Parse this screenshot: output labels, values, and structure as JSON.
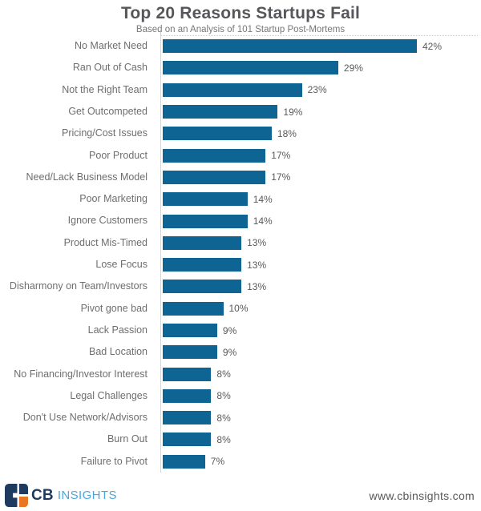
{
  "chart_data": {
    "type": "bar",
    "orientation": "horizontal",
    "title": "Top 20 Reasons Startups Fail",
    "subtitle": "Based on an Analysis of 101 Startup Post-Mortems",
    "categories": [
      "No Market Need",
      "Ran Out of Cash",
      "Not the Right Team",
      "Get Outcompeted",
      "Pricing/Cost Issues",
      "Poor Product",
      "Need/Lack Business Model",
      "Poor Marketing",
      "Ignore Customers",
      "Product Mis-Timed",
      "Lose Focus",
      "Disharmony on Team/Investors",
      "Pivot gone bad",
      "Lack Passion",
      "Bad Location",
      "No Financing/Investor Interest",
      "Legal Challenges",
      "Don't Use Network/Advisors",
      "Burn Out",
      "Failure to Pivot"
    ],
    "values": [
      42,
      29,
      23,
      19,
      18,
      17,
      17,
      14,
      14,
      13,
      13,
      13,
      10,
      9,
      9,
      8,
      8,
      8,
      8,
      7
    ],
    "value_suffix": "%",
    "xlabel": "",
    "ylabel": "",
    "xlim": [
      0,
      45
    ],
    "grid": false,
    "legend": "none",
    "data_labels": "outside-end"
  },
  "footer": {
    "logo_cb": "CB",
    "logo_insights": "INSIGHTS",
    "url": "www.cbinsights.com"
  },
  "icons": {
    "logo_mark": "cbinsights-logo-mark"
  },
  "colors": {
    "bar": "#0e6493",
    "title_text": "#56575a",
    "subtitle_text": "#76777a",
    "label_text": "#6d6e70",
    "value_text": "#58595b",
    "axis_line": "#d4d7da",
    "top_border": "#c7cdd2",
    "logo_navy": "#1e3a5e",
    "logo_blue": "#4ba7d9",
    "logo_orange": "#e87725",
    "url_text": "#57585a"
  }
}
